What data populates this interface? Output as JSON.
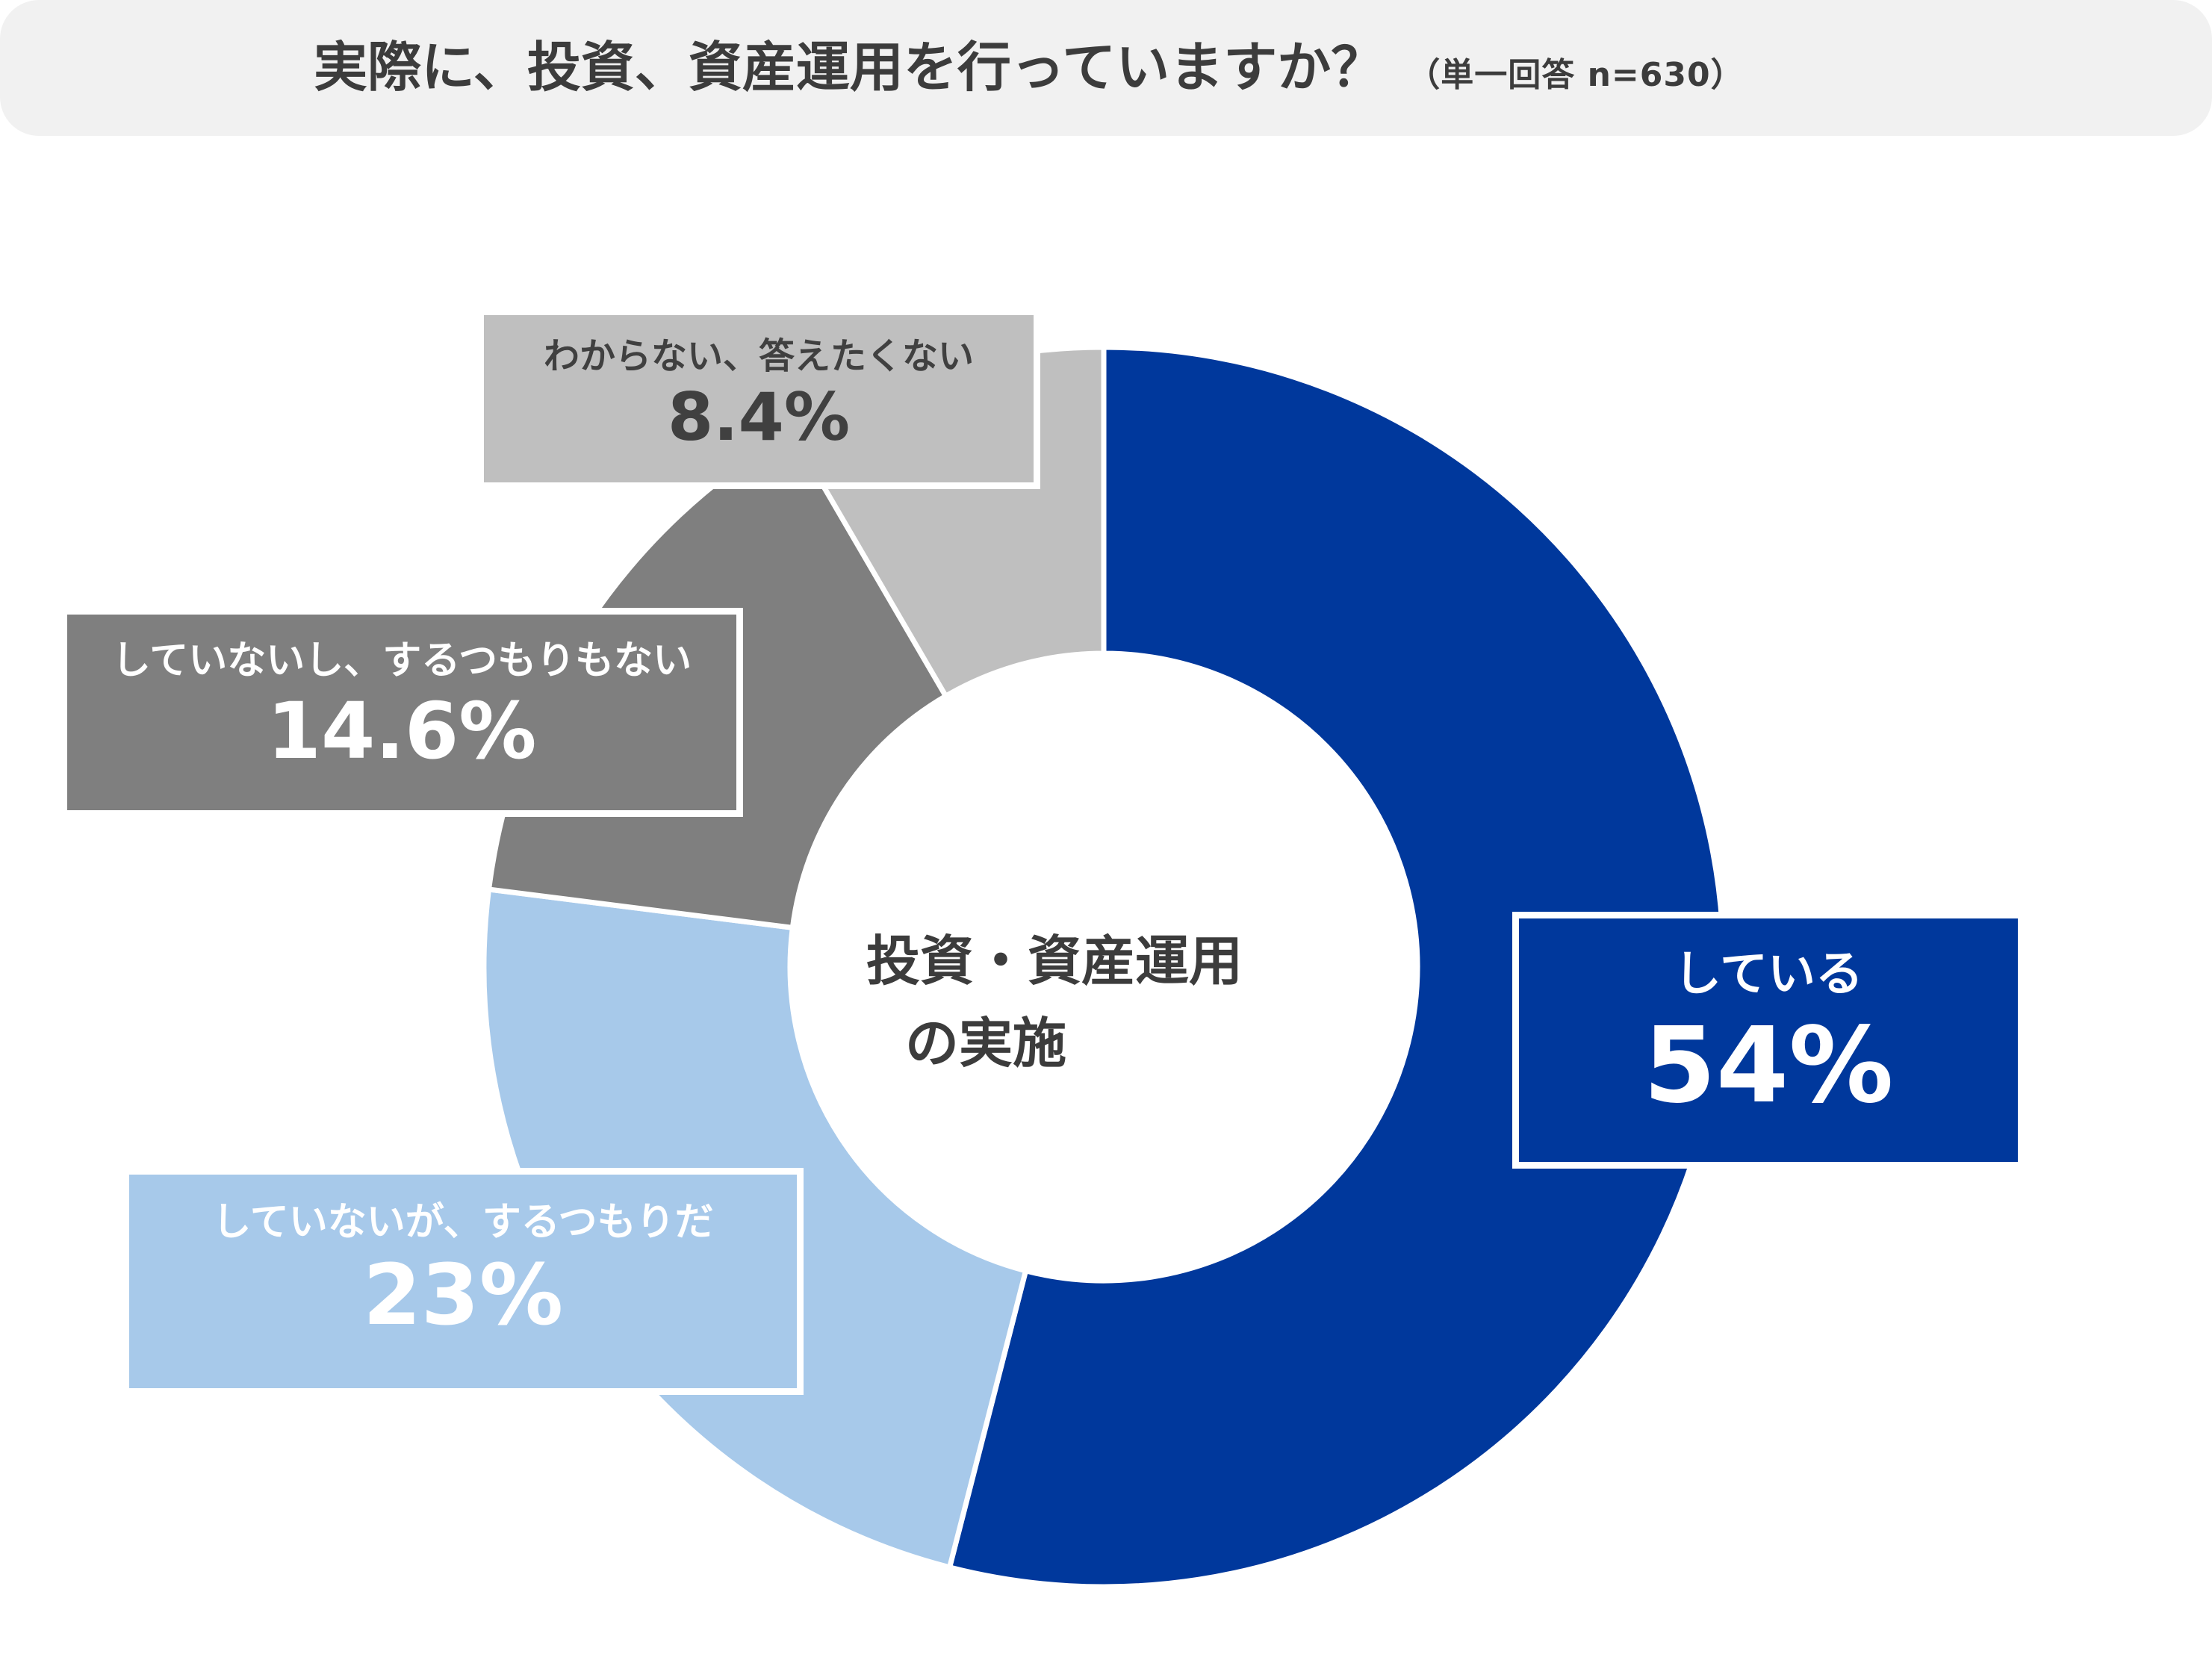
{
  "title": {
    "main": "実際に、投資、資産運用を行っていますか？",
    "sub": "（単一回答 n=630）"
  },
  "center": {
    "line1": "投資・資産運用",
    "line2": "の実施"
  },
  "chart_data": {
    "type": "pie",
    "variant": "donut",
    "slices": [
      {
        "label": "している",
        "value": 54,
        "value_label": "54%",
        "color": "#00389c",
        "text_color": "#ffffff"
      },
      {
        "label": "していないが、するつもりだ",
        "value": 23,
        "value_label": "23%",
        "color": "#a7c9ea",
        "text_color": "#ffffff"
      },
      {
        "label": "していないし、するつもりもない",
        "value": 14.6,
        "value_label": "14.6%",
        "color": "#7f7f7f",
        "text_color": "#ffffff"
      },
      {
        "label": "わからない、答えたくない",
        "value": 8.4,
        "value_label": "8.4%",
        "color": "#bfbfbf",
        "text_color": "#404040"
      }
    ],
    "start": "12 o'clock",
    "direction": "clockwise"
  }
}
